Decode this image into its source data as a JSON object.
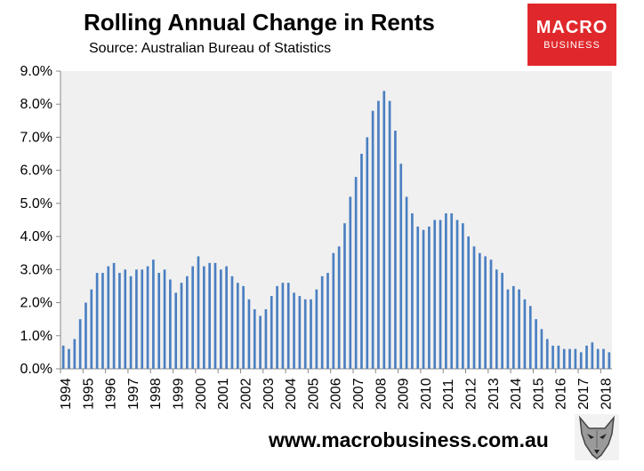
{
  "title": "Rolling Annual Change in Rents",
  "subtitle": "Source: Australian Bureau of Statistics",
  "logo": {
    "line1": "MACRO",
    "line2": "BUSINESS"
  },
  "footer": "www.macrobusiness.com.au",
  "colors": {
    "bar": "#4a7fc1",
    "plot_bg": "#f0f0f0",
    "logo_bg": "#e0282c"
  },
  "chart_data": {
    "type": "bar",
    "title": "Rolling Annual Change in Rents",
    "subtitle": "Source: Australian Bureau of Statistics",
    "xlabel": "",
    "ylabel": "",
    "ylim": [
      0,
      9
    ],
    "yticks": [
      "0.0%",
      "1.0%",
      "2.0%",
      "3.0%",
      "4.0%",
      "5.0%",
      "6.0%",
      "7.0%",
      "8.0%",
      "9.0%"
    ],
    "xticks": [
      "1994",
      "1995",
      "1996",
      "1997",
      "1998",
      "1999",
      "2000",
      "2001",
      "2002",
      "2003",
      "2004",
      "2005",
      "2006",
      "2007",
      "2008",
      "2009",
      "2010",
      "2011",
      "2012",
      "2013",
      "2014",
      "2015",
      "2016",
      "2017",
      "2018"
    ],
    "grid": false,
    "frequency": "quarterly",
    "series": [
      {
        "values": [
          0.7,
          0.6,
          0.9,
          1.5,
          2.0,
          2.4,
          2.9,
          2.9,
          3.1,
          3.2,
          2.9,
          3.0,
          2.8,
          3.0,
          3.0,
          3.1,
          3.3,
          2.9,
          3.0,
          2.7,
          2.3,
          2.6,
          2.8,
          3.1,
          3.4,
          3.1,
          3.2,
          3.2,
          3.0,
          3.1,
          2.8,
          2.6,
          2.5,
          2.1,
          1.8,
          1.6,
          1.8,
          2.2,
          2.5,
          2.6,
          2.6,
          2.3,
          2.2,
          2.1,
          2.1,
          2.4,
          2.8,
          2.9,
          3.5,
          3.7,
          4.4,
          5.2,
          5.8,
          6.5,
          7.0,
          7.8,
          8.1,
          8.4,
          8.1,
          7.2,
          6.2,
          5.2,
          4.7,
          4.3,
          4.2,
          4.3,
          4.5,
          4.5,
          4.7,
          4.7,
          4.5,
          4.4,
          4.0,
          3.7,
          3.5,
          3.4,
          3.3,
          3.0,
          2.9,
          2.4,
          2.5,
          2.4,
          2.1,
          1.9,
          1.5,
          1.2,
          0.9,
          0.7,
          0.7,
          0.6,
          0.6,
          0.6,
          0.5,
          0.7,
          0.8,
          0.6,
          0.6,
          0.5
        ]
      }
    ]
  }
}
